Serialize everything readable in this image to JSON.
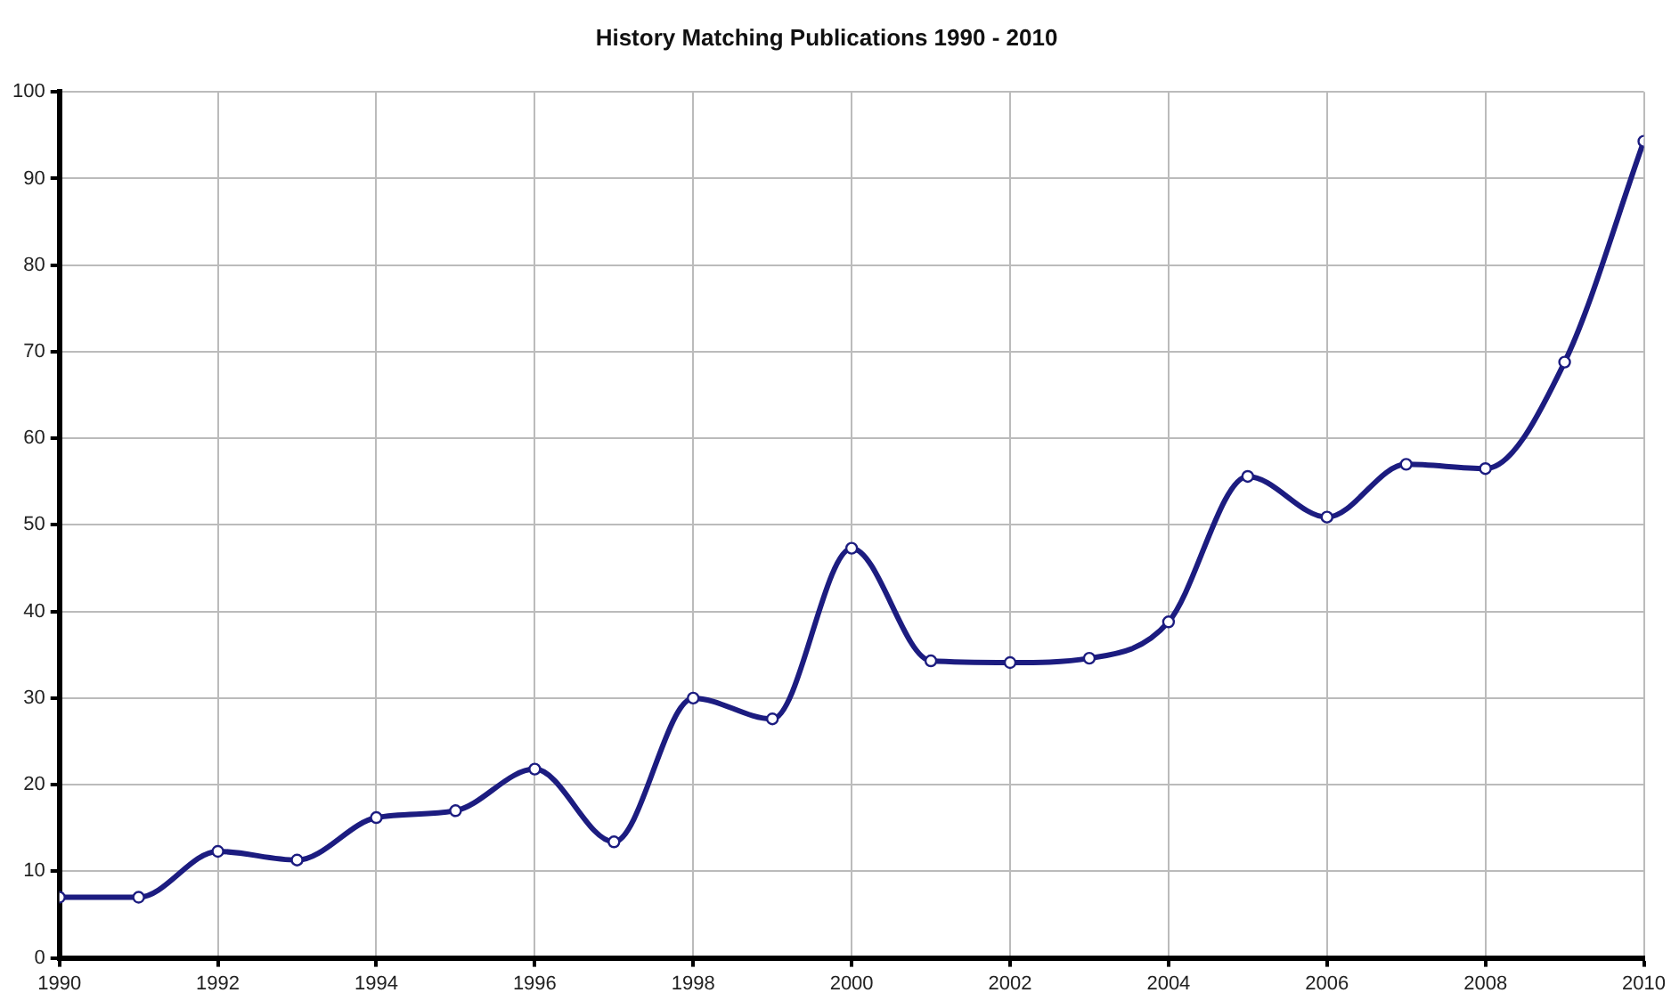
{
  "chart_data": {
    "type": "line",
    "title": "History Matching Publications 1990 - 2010",
    "x": [
      1990,
      1991,
      1992,
      1993,
      1994,
      1995,
      1996,
      1997,
      1998,
      1999,
      2000,
      2001,
      2002,
      2003,
      2004,
      2005,
      2006,
      2007,
      2008,
      2009,
      2010
    ],
    "series": [
      {
        "color": "#1c1c80",
        "values": [
          7,
          7,
          12.3,
          11.3,
          16.2,
          17,
          21.8,
          13.4,
          30,
          27.6,
          47.3,
          34.3,
          34.1,
          34.6,
          38.8,
          55.6,
          50.9,
          57,
          56.5,
          68.8,
          94.3
        ]
      }
    ],
    "xlim": [
      1990,
      2010
    ],
    "xticks": [
      1990,
      1992,
      1994,
      1996,
      1998,
      2000,
      2002,
      2004,
      2006,
      2008,
      2010
    ],
    "ylim": [
      0,
      100
    ],
    "yticks": [
      0,
      10,
      20,
      30,
      40,
      50,
      60,
      70,
      80,
      90,
      100
    ],
    "grid": true,
    "legend": false,
    "marker": "circle",
    "line_style": "solid"
  }
}
